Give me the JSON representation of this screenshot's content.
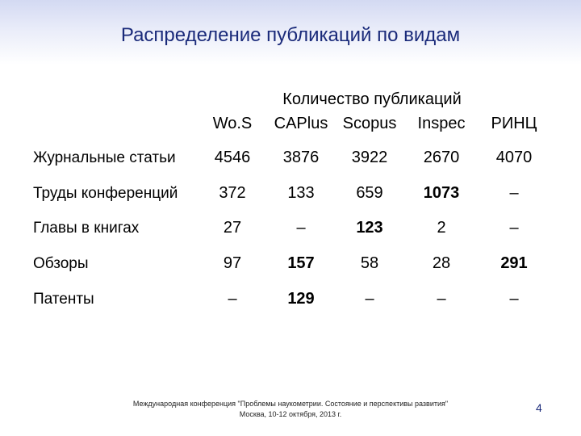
{
  "slide": {
    "title": "Распределение публикаций по видам",
    "group_header": "Количество публикаций",
    "columns": [
      "Wo.S",
      "CAPlus",
      "Scopus",
      "Inspec",
      "РИНЦ"
    ],
    "rows": [
      {
        "label": "Журнальные статьи",
        "cells": [
          {
            "v": "4546",
            "b": false
          },
          {
            "v": "3876",
            "b": false
          },
          {
            "v": "3922",
            "b": false
          },
          {
            "v": "2670",
            "b": false
          },
          {
            "v": "4070",
            "b": false
          }
        ]
      },
      {
        "label": "Труды конференций",
        "cells": [
          {
            "v": "372",
            "b": false
          },
          {
            "v": "133",
            "b": false
          },
          {
            "v": "659",
            "b": false
          },
          {
            "v": "1073",
            "b": true
          },
          {
            "v": "–",
            "b": false
          }
        ]
      },
      {
        "label": "Главы в книгах",
        "cells": [
          {
            "v": "27",
            "b": false
          },
          {
            "v": "–",
            "b": false
          },
          {
            "v": "123",
            "b": true
          },
          {
            "v": "2",
            "b": false
          },
          {
            "v": "–",
            "b": false
          }
        ]
      },
      {
        "label": "Обзоры",
        "cells": [
          {
            "v": "97",
            "b": false
          },
          {
            "v": "157",
            "b": true
          },
          {
            "v": "58",
            "b": false
          },
          {
            "v": "28",
            "b": false
          },
          {
            "v": "291",
            "b": true
          }
        ]
      },
      {
        "label": "Патенты",
        "cells": [
          {
            "v": "–",
            "b": false
          },
          {
            "v": "129",
            "b": true
          },
          {
            "v": "–",
            "b": false
          },
          {
            "v": "–",
            "b": false
          },
          {
            "v": "–",
            "b": false
          }
        ]
      }
    ],
    "footer_line1": "Международная конференция \"Проблемы наукометрии. Состояние и перспективы развития\"",
    "footer_line2": "Москва, 10-12 октября, 2013 г.",
    "page_number": "4"
  },
  "colors": {
    "title": "#1a2a7a",
    "band_top": "#d3d9f2"
  }
}
